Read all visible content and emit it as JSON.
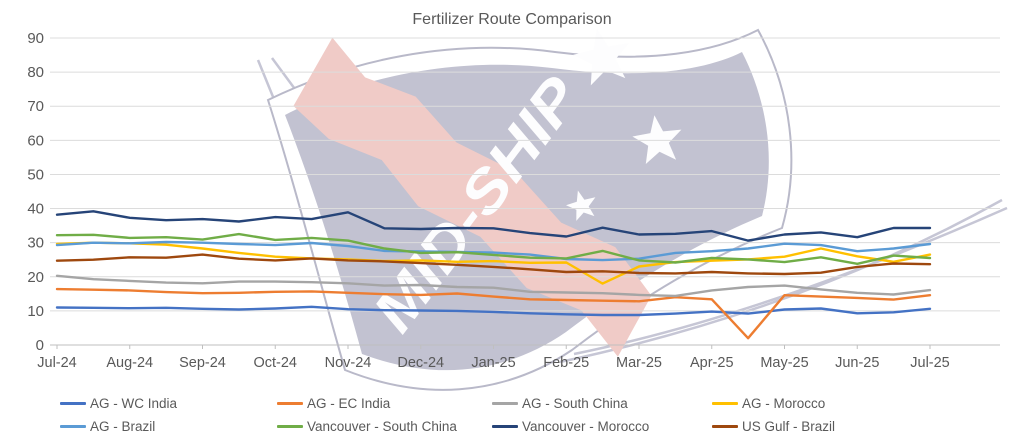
{
  "title": "Fertilizer Route Comparison",
  "watermark": {
    "text": "MID-SHIP"
  },
  "chart_data": {
    "type": "line",
    "title": "Fertilizer Route Comparison",
    "xlabel": "",
    "ylabel": "",
    "ylim": [
      0,
      90
    ],
    "y_ticks": [
      0,
      10,
      20,
      30,
      40,
      50,
      60,
      70,
      80,
      90
    ],
    "grid": true,
    "legend_position": "bottom",
    "x_tick_labels": [
      "Jul-24",
      "Aug-24",
      "Sep-24",
      "Oct-24",
      "Nov-24",
      "Dec-24",
      "Jan-25",
      "Feb-25",
      "Mar-25",
      "Apr-25",
      "May-25",
      "Jun-25",
      "Jul-25"
    ],
    "x_months": [
      0,
      0.5,
      1,
      1.5,
      2,
      2.5,
      3,
      3.5,
      4,
      4.5,
      5,
      5.5,
      6,
      6.5,
      7,
      7.5,
      8,
      8.5,
      9,
      9.5,
      10,
      10.5,
      11,
      11.5,
      12
    ],
    "series": [
      {
        "name": "AG - WC India",
        "color": "#4472C4",
        "values": [
          11.0,
          10.9,
          10.8,
          10.9,
          10.6,
          10.4,
          10.7,
          11.2,
          10.5,
          10.2,
          10.1,
          10.0,
          9.7,
          9.3,
          9.0,
          8.8,
          8.8,
          9.2,
          9.8,
          9.2,
          10.4,
          10.7,
          9.3,
          9.6,
          10.6
        ]
      },
      {
        "name": "AG - EC India",
        "color": "#ED7D31",
        "values": [
          16.4,
          16.2,
          16.0,
          15.5,
          15.2,
          15.3,
          15.6,
          15.7,
          15.3,
          14.9,
          14.7,
          15.1,
          14.2,
          13.4,
          13.2,
          13.0,
          12.8,
          14.0,
          13.4,
          2.0,
          14.6,
          14.2,
          13.8,
          13.3,
          14.6
        ]
      },
      {
        "name": "AG - South China",
        "color": "#A5A5A5",
        "values": [
          20.3,
          19.3,
          18.8,
          18.3,
          18.1,
          18.6,
          18.6,
          18.4,
          18.1,
          17.4,
          17.6,
          17.0,
          16.8,
          15.6,
          15.4,
          15.2,
          14.7,
          14.4,
          16.0,
          17.0,
          17.4,
          16.3,
          15.3,
          14.8,
          16.1
        ]
      },
      {
        "name": "AG - Morocco",
        "color": "#FFC000",
        "values": [
          29.6,
          30.0,
          29.8,
          29.4,
          28.3,
          27.0,
          25.9,
          25.4,
          25.1,
          24.6,
          24.8,
          24.4,
          24.6,
          24.1,
          24.2,
          18.0,
          23.0,
          24.3,
          24.7,
          25.1,
          25.9,
          28.3,
          26.0,
          24.4,
          26.5
        ]
      },
      {
        "name": "AG - Brazil",
        "color": "#5B9BD5",
        "values": [
          29.3,
          30.0,
          29.8,
          30.2,
          30.0,
          29.6,
          29.3,
          29.9,
          29.0,
          27.6,
          27.4,
          27.3,
          27.1,
          26.5,
          25.2,
          24.9,
          25.3,
          27.0,
          27.5,
          28.3,
          29.7,
          29.3,
          27.5,
          28.3,
          29.6
        ]
      },
      {
        "name": "Vancouver - South China",
        "color": "#70AD47",
        "values": [
          32.2,
          32.3,
          31.4,
          31.6,
          30.9,
          32.5,
          30.8,
          31.4,
          30.6,
          28.3,
          27.0,
          27.2,
          26.4,
          25.6,
          25.4,
          27.6,
          24.8,
          24.2,
          25.5,
          25.1,
          24.3,
          25.7,
          23.8,
          26.2,
          25.5
        ]
      },
      {
        "name": "Vancouver - Morocco",
        "color": "#264478",
        "values": [
          38.2,
          39.2,
          37.3,
          36.6,
          36.9,
          36.2,
          37.5,
          36.9,
          38.9,
          34.2,
          34.0,
          34.3,
          34.2,
          32.8,
          31.8,
          34.4,
          32.4,
          32.6,
          33.4,
          30.6,
          32.4,
          33.0,
          31.6,
          34.3,
          34.3
        ]
      },
      {
        "name": "US Gulf - Brazil",
        "color": "#9E480E",
        "values": [
          24.7,
          25.0,
          25.7,
          25.6,
          26.5,
          25.3,
          24.8,
          25.4,
          24.8,
          24.5,
          24.0,
          23.5,
          22.9,
          22.2,
          21.4,
          21.6,
          21.1,
          21.0,
          21.4,
          21.0,
          20.8,
          21.2,
          22.9,
          23.9,
          23.7
        ]
      }
    ]
  }
}
